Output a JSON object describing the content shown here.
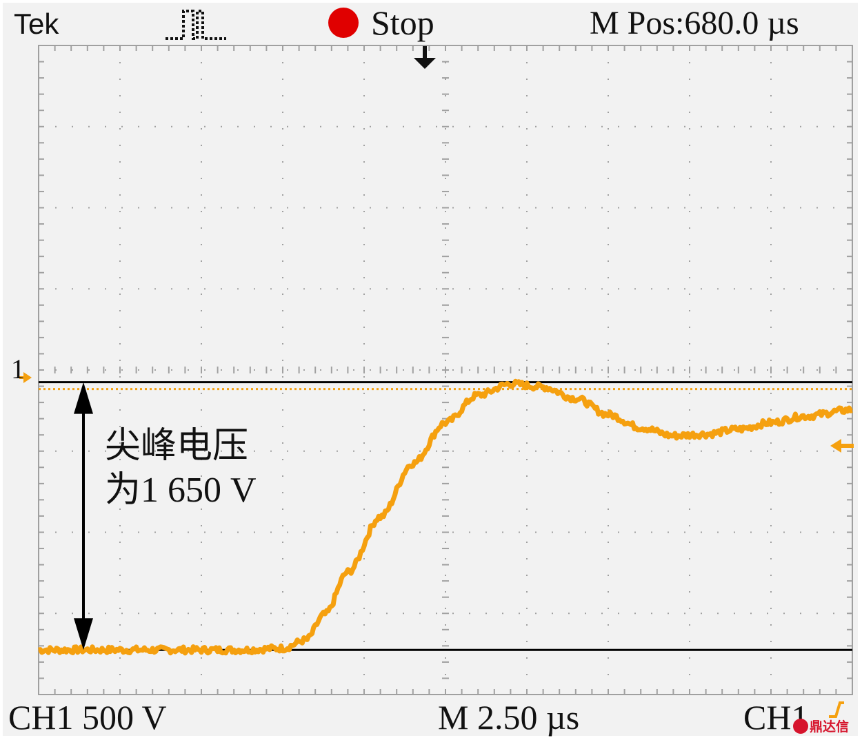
{
  "header": {
    "brand": "Tek",
    "status": "Stop",
    "m_pos": "M Pos:680.0 µs"
  },
  "footer": {
    "ch1_scale": "CH1 500 V",
    "timebase": "M 2.50 µs",
    "trigger_source": "CH1"
  },
  "channel_marker": "1",
  "annotation": {
    "line1": "尖峰电压",
    "line2": "为1 650 V"
  },
  "logo_text": "鼎达信",
  "colors": {
    "trace": "#f5a00f",
    "status_dot": "#e00000",
    "grid": "#a0a0a0",
    "annotation_lines": "#000000",
    "logo": "#d6142c"
  },
  "chart_data": {
    "type": "line",
    "title": "",
    "xlabel": "",
    "ylabel": "",
    "x_unit": "µs",
    "y_unit": "V",
    "x_div": 2.5,
    "y_div": 500,
    "x_divisions": 10,
    "y_divisions": 8,
    "xlim": [
      0,
      25
    ],
    "ylim": [
      -275,
      3725
    ],
    "grid": true,
    "baseline_level": 0,
    "peak_level": 1650,
    "series": [
      {
        "name": "",
        "points": [
          [
            0,
            0
          ],
          [
            2.5,
            0
          ],
          [
            5,
            0
          ],
          [
            6.2,
            0
          ],
          [
            7.5,
            10
          ],
          [
            8.2,
            60
          ],
          [
            8.8,
            220
          ],
          [
            9.5,
            480
          ],
          [
            10.5,
            820
          ],
          [
            11.5,
            1150
          ],
          [
            12.5,
            1400
          ],
          [
            13.5,
            1570
          ],
          [
            14.5,
            1640
          ],
          [
            15.5,
            1620
          ],
          [
            16.5,
            1550
          ],
          [
            17.5,
            1450
          ],
          [
            18.5,
            1370
          ],
          [
            19.5,
            1320
          ],
          [
            20.5,
            1330
          ],
          [
            21.5,
            1360
          ],
          [
            22.5,
            1400
          ],
          [
            23.5,
            1440
          ],
          [
            25,
            1480
          ]
        ]
      }
    ],
    "annotations": [
      {
        "text": "尖峰电压为1 650 V",
        "type": "double-arrow",
        "from": 0,
        "to": 1650
      },
      {
        "type": "hline",
        "value": 0,
        "style": "solid black"
      },
      {
        "type": "hline",
        "value": 1650,
        "style": "solid black"
      }
    ]
  }
}
